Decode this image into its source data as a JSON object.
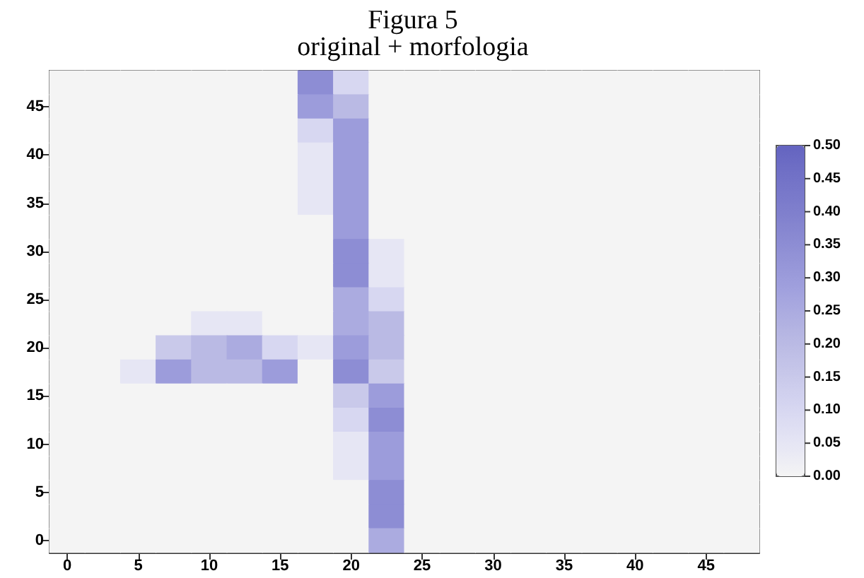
{
  "chart_data": {
    "type": "heatmap",
    "title": "Figura 5",
    "subtitle": "original + morfologia",
    "categories": [
      "0",
      null,
      "5",
      null,
      "10",
      null,
      "15",
      null,
      "20",
      null,
      "25",
      null,
      "30",
      null,
      "35",
      null,
      "40",
      null,
      "45",
      null
    ],
    "y_categories": [
      null,
      "45",
      null,
      "40",
      null,
      "35",
      null,
      "30",
      null,
      "25",
      null,
      "20",
      null,
      "15",
      null,
      "10",
      null,
      "5",
      null,
      "0"
    ],
    "cells": [
      [
        0,
        0,
        0,
        0,
        0,
        0,
        0,
        0.35,
        0.1,
        0,
        0,
        0,
        0,
        0,
        0,
        0,
        0,
        0,
        0,
        0
      ],
      [
        0,
        0,
        0,
        0,
        0,
        0,
        0,
        0.3,
        0.2,
        0,
        0,
        0,
        0,
        0,
        0,
        0,
        0,
        0,
        0,
        0
      ],
      [
        0,
        0,
        0,
        0,
        0,
        0,
        0,
        0.1,
        0.3,
        0,
        0,
        0,
        0,
        0,
        0,
        0,
        0,
        0,
        0,
        0
      ],
      [
        0,
        0,
        0,
        0,
        0,
        0,
        0,
        0.05,
        0.3,
        0,
        0,
        0,
        0,
        0,
        0,
        0,
        0,
        0,
        0,
        0
      ],
      [
        0,
        0,
        0,
        0,
        0,
        0,
        0,
        0.05,
        0.3,
        0,
        0,
        0,
        0,
        0,
        0,
        0,
        0,
        0,
        0,
        0
      ],
      [
        0,
        0,
        0,
        0,
        0,
        0,
        0,
        0.05,
        0.3,
        0,
        0,
        0,
        0,
        0,
        0,
        0,
        0,
        0,
        0,
        0
      ],
      [
        0,
        0,
        0,
        0,
        0,
        0,
        0,
        0,
        0.3,
        0,
        0,
        0,
        0,
        0,
        0,
        0,
        0,
        0,
        0,
        0
      ],
      [
        0,
        0,
        0,
        0,
        0,
        0,
        0,
        0,
        0.35,
        0.05,
        0,
        0,
        0,
        0,
        0,
        0,
        0,
        0,
        0,
        0
      ],
      [
        0,
        0,
        0,
        0,
        0,
        0,
        0,
        0,
        0.35,
        0.05,
        0,
        0,
        0,
        0,
        0,
        0,
        0,
        0,
        0,
        0
      ],
      [
        0,
        0,
        0,
        0,
        0,
        0,
        0,
        0,
        0.25,
        0.1,
        0,
        0,
        0,
        0,
        0,
        0,
        0,
        0,
        0,
        0
      ],
      [
        0,
        0,
        0,
        0,
        0.05,
        0.05,
        0,
        0,
        0.25,
        0.2,
        0,
        0,
        0,
        0,
        0,
        0,
        0,
        0,
        0,
        0
      ],
      [
        0,
        0,
        0,
        0.15,
        0.2,
        0.25,
        0.1,
        0.05,
        0.3,
        0.2,
        0,
        0,
        0,
        0,
        0,
        0,
        0,
        0,
        0,
        0
      ],
      [
        0,
        0,
        0.05,
        0.3,
        0.2,
        0.2,
        0.3,
        0,
        0.35,
        0.15,
        0,
        0,
        0,
        0,
        0,
        0,
        0,
        0,
        0,
        0
      ],
      [
        0,
        0,
        0,
        0,
        0,
        0,
        0,
        0,
        0.15,
        0.3,
        0,
        0,
        0,
        0,
        0,
        0,
        0,
        0,
        0,
        0
      ],
      [
        0,
        0,
        0,
        0,
        0,
        0,
        0,
        0,
        0.1,
        0.35,
        0,
        0,
        0,
        0,
        0,
        0,
        0,
        0,
        0,
        0
      ],
      [
        0,
        0,
        0,
        0,
        0,
        0,
        0,
        0,
        0.05,
        0.3,
        0,
        0,
        0,
        0,
        0,
        0,
        0,
        0,
        0,
        0
      ],
      [
        0,
        0,
        0,
        0,
        0,
        0,
        0,
        0,
        0.05,
        0.3,
        0,
        0,
        0,
        0,
        0,
        0,
        0,
        0,
        0,
        0
      ],
      [
        0,
        0,
        0,
        0,
        0,
        0,
        0,
        0,
        0,
        0.35,
        0,
        0,
        0,
        0,
        0,
        0,
        0,
        0,
        0,
        0
      ],
      [
        0,
        0,
        0,
        0,
        0,
        0,
        0,
        0,
        0,
        0.35,
        0,
        0,
        0,
        0,
        0,
        0,
        0,
        0,
        0,
        0
      ],
      [
        0,
        0,
        0,
        0,
        0,
        0,
        0,
        0,
        0,
        0.25,
        0,
        0,
        0,
        0,
        0,
        0,
        0,
        0,
        0,
        0
      ]
    ],
    "clim": [
      0,
      0.5
    ],
    "cticks": [
      {
        "value": 0,
        "label": "0.00"
      },
      {
        "value": 0.05,
        "label": "0.05"
      },
      {
        "value": 0.1,
        "label": "0.10"
      },
      {
        "value": 0.15,
        "label": "0.15"
      },
      {
        "value": 0.2,
        "label": "0.20"
      },
      {
        "value": 0.25,
        "label": "0.25"
      },
      {
        "value": 0.3,
        "label": "0.30"
      },
      {
        "value": 0.35,
        "label": "0.35"
      },
      {
        "value": 0.4,
        "label": "0.40"
      },
      {
        "value": 0.45,
        "label": "0.45"
      },
      {
        "value": 0.5,
        "label": "0.50"
      }
    ],
    "colors": [
      "#f4f4f4",
      "#e4e4f4",
      "#d4d4f0",
      "#c4c4e8",
      "#b4b4e2",
      "#a2a2de",
      "#9292d6",
      "#8282ce",
      "#7474c8",
      "#6464c0"
    ]
  }
}
